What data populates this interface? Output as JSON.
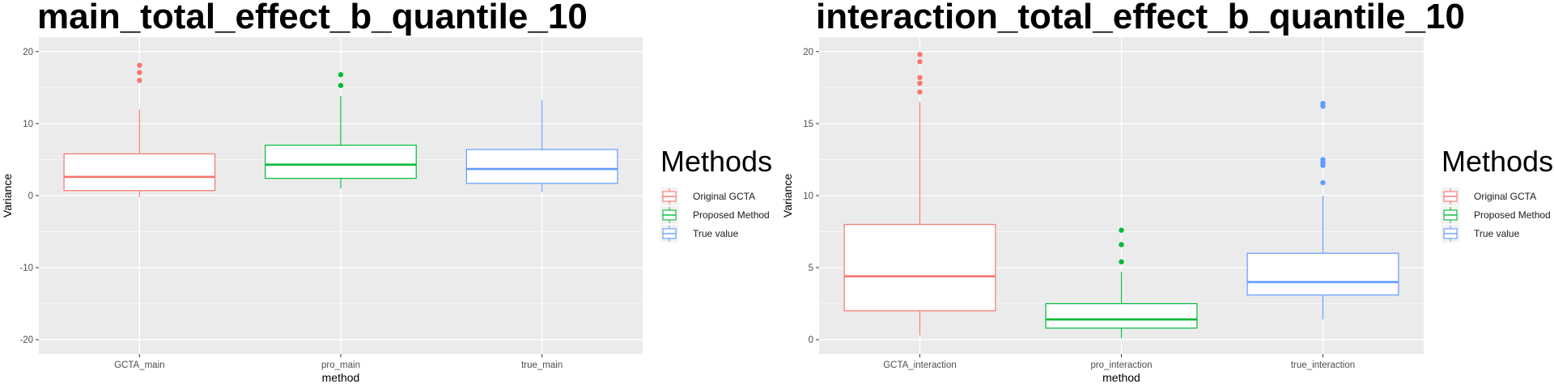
{
  "chart_data": [
    {
      "type": "box",
      "title": "main_total_effect_b_quantile_10",
      "xlabel": "method",
      "ylabel": "Variance",
      "ylim": [
        -22,
        22
      ],
      "yticks": [
        -20,
        -10,
        0,
        10,
        20
      ],
      "grid": true,
      "legend_title": "Methods",
      "legend_position": "right",
      "categories": [
        "GCTA_main",
        "pro_main",
        "true_main"
      ],
      "series": [
        {
          "name": "Original GCTA",
          "color": "#F8766D",
          "q1": 0.7,
          "median": 2.6,
          "q3": 5.8,
          "whisker_low": -0.2,
          "whisker_high": 12.0,
          "outliers": [
            16.0,
            17.1,
            18.1
          ]
        },
        {
          "name": "Proposed Method",
          "color": "#00BA38",
          "q1": 2.4,
          "median": 4.3,
          "q3": 7.0,
          "whisker_low": 1.0,
          "whisker_high": 13.8,
          "outliers": [
            15.3,
            16.8
          ]
        },
        {
          "name": "True value",
          "color": "#619CFF",
          "q1": 1.7,
          "median": 3.7,
          "q3": 6.4,
          "whisker_low": 0.5,
          "whisker_high": 13.3,
          "outliers": []
        }
      ]
    },
    {
      "type": "box",
      "title": "interaction_total_effect_b_quantile_10",
      "xlabel": "method",
      "ylabel": "Variance",
      "ylim": [
        -1,
        21
      ],
      "yticks": [
        0,
        5,
        10,
        15,
        20
      ],
      "grid": true,
      "legend_title": "Methods",
      "legend_position": "right",
      "categories": [
        "GCTA_interaction",
        "pro_interaction",
        "true_interaction"
      ],
      "series": [
        {
          "name": "Original GCTA",
          "color": "#F8766D",
          "q1": 2.0,
          "median": 4.4,
          "q3": 8.0,
          "whisker_low": 0.3,
          "whisker_high": 16.5,
          "outliers": [
            17.2,
            17.8,
            18.2,
            19.3,
            19.8
          ]
        },
        {
          "name": "Proposed Method",
          "color": "#00BA38",
          "q1": 0.8,
          "median": 1.4,
          "q3": 2.5,
          "whisker_low": 0.1,
          "whisker_high": 4.7,
          "outliers": [
            5.4,
            6.6,
            7.6
          ]
        },
        {
          "name": "True value",
          "color": "#619CFF",
          "q1": 3.1,
          "median": 4.0,
          "q3": 6.0,
          "whisker_low": 1.4,
          "whisker_high": 10.0,
          "outliers": [
            10.9,
            12.1,
            12.3,
            12.5,
            16.2,
            16.4
          ]
        }
      ]
    }
  ]
}
